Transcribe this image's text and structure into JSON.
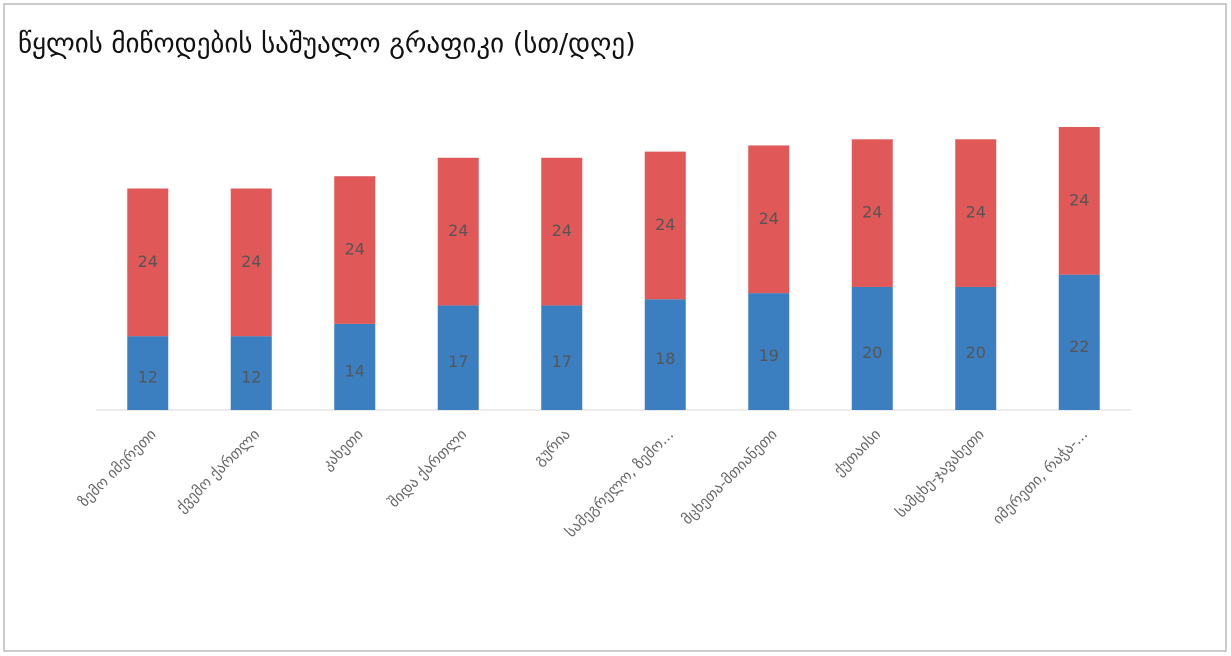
{
  "chart_data": {
    "type": "stacked_bar",
    "title": "წყლის მიწოდების საშუალო გრაფიკი (სთ/დღე)",
    "categories": [
      "ზემო იმერეთი",
      "ქვემო ქართლი",
      "კახეთი",
      "შიდა ქართლი",
      "გურია",
      "სამეგრელო, ზემო...",
      "მცხეთა-მთიანეთი",
      "ქუთაისი",
      "სამცხე-ჯავახეთი",
      "იმერეთი, რაჭა-..."
    ],
    "series": [
      {
        "color": "#3b7fc0",
        "values": [
          12,
          12,
          14,
          17,
          17,
          18,
          19,
          20,
          20,
          22
        ]
      },
      {
        "color": "#e05858",
        "values": [
          24,
          24,
          24,
          24,
          24,
          24,
          24,
          24,
          24,
          24
        ]
      }
    ]
  }
}
